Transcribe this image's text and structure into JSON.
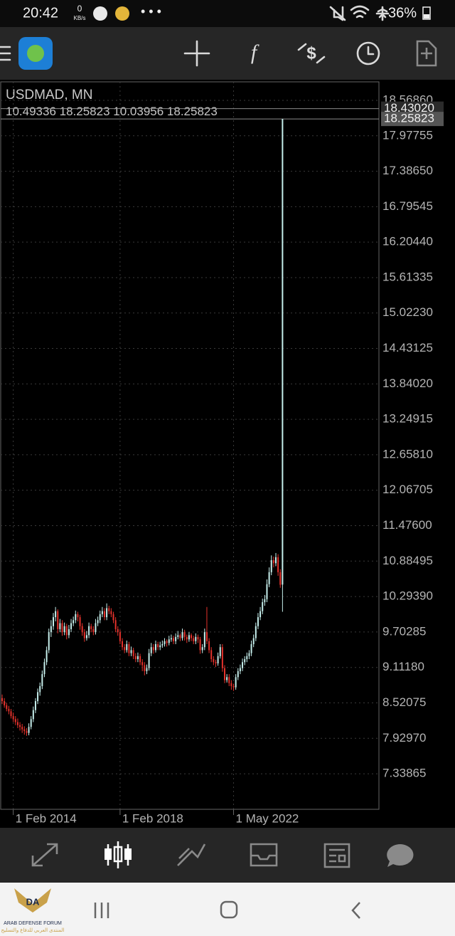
{
  "status_bar": {
    "time": "20:42",
    "speed": "0",
    "speed_unit": "KB/s",
    "battery": "36%"
  },
  "chart_data": {
    "type": "candlestick",
    "title": "USDMAD, MN",
    "up_color": "#c6efec",
    "down_color": "#e5322c",
    "grid": true,
    "ylim": [
      6.746,
      18.877
    ],
    "yticks": [
      {
        "value": 18.5686,
        "label": "18.56860"
      },
      17.97755,
      {
        "value": 17.3865,
        "label": "17.38650"
      },
      16.79545,
      {
        "value": 16.2044,
        "label": "16.20440"
      },
      15.61335,
      {
        "value": 15.0223,
        "label": "15.02230"
      },
      14.43125,
      {
        "value": 13.8402,
        "label": "13.84020"
      },
      13.24915,
      {
        "value": 12.6581,
        "label": "12.65810"
      },
      12.06705,
      {
        "value": 11.476,
        "label": "11.47600"
      },
      10.88495,
      {
        "value": 10.2939,
        "label": "10.29390"
      },
      9.70285,
      {
        "value": 9.1118,
        "label": "9.11180"
      },
      8.52075,
      {
        "value": 7.9297,
        "label": "7.92970"
      },
      7.33865
    ],
    "xticks": [
      {
        "value": 5,
        "label": "1 Feb 2014"
      },
      {
        "value": 53,
        "label": "1 Feb 2018"
      },
      {
        "value": 104,
        "label": "1 May 2022"
      }
    ],
    "price_lines": [
      {
        "value": 18.4302,
        "label": "18.43020"
      },
      18.25823
    ],
    "candles": [
      [
        8.6,
        8.66,
        8.5,
        8.55
      ],
      [
        8.55,
        8.6,
        8.44,
        8.48
      ],
      [
        8.48,
        8.52,
        8.38,
        8.42
      ],
      [
        8.42,
        8.47,
        8.33,
        8.38
      ],
      [
        8.38,
        8.42,
        8.26,
        8.3
      ],
      [
        8.3,
        8.36,
        8.2,
        8.25
      ],
      [
        8.25,
        8.3,
        8.15,
        8.2
      ],
      [
        8.2,
        8.26,
        8.1,
        8.15
      ],
      [
        8.15,
        8.2,
        8.06,
        8.12
      ],
      [
        8.12,
        8.17,
        8.02,
        8.08
      ],
      [
        8.08,
        8.13,
        7.99,
        8.05
      ],
      [
        8.05,
        8.1,
        7.97,
        8.02
      ],
      [
        8.02,
        8.18,
        7.98,
        8.12
      ],
      [
        8.12,
        8.3,
        8.08,
        8.25
      ],
      [
        8.25,
        8.46,
        8.2,
        8.4
      ],
      [
        8.4,
        8.6,
        8.35,
        8.55
      ],
      [
        8.55,
        8.76,
        8.5,
        8.7
      ],
      [
        8.7,
        8.86,
        8.64,
        8.8
      ],
      [
        8.8,
        9.06,
        8.75,
        9.0
      ],
      [
        9.0,
        9.26,
        8.95,
        9.2
      ],
      [
        9.2,
        9.46,
        9.15,
        9.4
      ],
      [
        9.4,
        9.76,
        9.35,
        9.7
      ],
      [
        9.7,
        9.9,
        9.62,
        9.8
      ],
      [
        9.8,
        10.02,
        9.74,
        9.95
      ],
      [
        9.95,
        10.12,
        9.88,
        10.05
      ],
      [
        10.05,
        10.08,
        9.68,
        9.75
      ],
      [
        9.75,
        9.92,
        9.7,
        9.85
      ],
      [
        9.85,
        9.9,
        9.64,
        9.7
      ],
      [
        9.7,
        9.86,
        9.65,
        9.8
      ],
      [
        9.8,
        9.84,
        9.58,
        9.65
      ],
      [
        9.65,
        9.82,
        9.6,
        9.75
      ],
      [
        9.75,
        9.92,
        9.7,
        9.85
      ],
      [
        9.85,
        9.96,
        9.8,
        9.9
      ],
      [
        9.9,
        10.06,
        9.85,
        10.0
      ],
      [
        10.0,
        10.04,
        9.88,
        9.95
      ],
      [
        9.95,
        9.99,
        9.74,
        9.8
      ],
      [
        9.8,
        9.85,
        9.64,
        9.7
      ],
      [
        9.7,
        9.75,
        9.54,
        9.6
      ],
      [
        9.6,
        9.72,
        9.56,
        9.65
      ],
      [
        9.65,
        9.86,
        9.6,
        9.8
      ],
      [
        9.8,
        9.84,
        9.7,
        9.75
      ],
      [
        9.75,
        9.8,
        9.65,
        9.7
      ],
      [
        9.7,
        9.92,
        9.66,
        9.85
      ],
      [
        9.85,
        9.96,
        9.8,
        9.9
      ],
      [
        9.9,
        10.06,
        9.85,
        10.0
      ],
      [
        10.0,
        10.12,
        9.95,
        10.05
      ],
      [
        10.05,
        10.1,
        9.9,
        9.95
      ],
      [
        9.95,
        10.18,
        9.9,
        10.1
      ],
      [
        10.1,
        10.14,
        10.0,
        10.05
      ],
      [
        10.05,
        10.1,
        9.95,
        10.0
      ],
      [
        10.0,
        10.04,
        9.85,
        9.9
      ],
      [
        9.9,
        9.95,
        9.7,
        9.75
      ],
      [
        9.75,
        9.8,
        9.64,
        9.7
      ],
      [
        9.7,
        9.74,
        9.5,
        9.55
      ],
      [
        9.55,
        9.6,
        9.4,
        9.45
      ],
      [
        9.45,
        9.5,
        9.35,
        9.4
      ],
      [
        9.4,
        9.56,
        9.36,
        9.5
      ],
      [
        9.5,
        9.54,
        9.3,
        9.35
      ],
      [
        9.35,
        9.46,
        9.3,
        9.4
      ],
      [
        9.4,
        9.44,
        9.25,
        9.3
      ],
      [
        9.3,
        9.35,
        9.2,
        9.25
      ],
      [
        9.25,
        9.36,
        9.2,
        9.3
      ],
      [
        9.3,
        9.34,
        9.15,
        9.2
      ],
      [
        9.2,
        9.25,
        9.05,
        9.15
      ],
      [
        9.15,
        9.2,
        8.98,
        9.05
      ],
      [
        9.05,
        9.16,
        9.0,
        9.1
      ],
      [
        9.1,
        9.42,
        9.06,
        9.35
      ],
      [
        9.35,
        9.52,
        9.3,
        9.45
      ],
      [
        9.45,
        9.5,
        9.34,
        9.4
      ],
      [
        9.4,
        9.56,
        9.36,
        9.5
      ],
      [
        9.5,
        9.54,
        9.4,
        9.45
      ],
      [
        9.45,
        9.54,
        9.4,
        9.48
      ],
      [
        9.48,
        9.56,
        9.44,
        9.5
      ],
      [
        9.5,
        9.6,
        9.46,
        9.55
      ],
      [
        9.55,
        9.58,
        9.46,
        9.52
      ],
      [
        9.52,
        9.64,
        9.48,
        9.58
      ],
      [
        9.58,
        9.66,
        9.54,
        9.6
      ],
      [
        9.6,
        9.64,
        9.5,
        9.55
      ],
      [
        9.55,
        9.68,
        9.5,
        9.62
      ],
      [
        9.62,
        9.72,
        9.58,
        9.65
      ],
      [
        9.65,
        9.68,
        9.55,
        9.6
      ],
      [
        9.6,
        9.76,
        9.56,
        9.7
      ],
      [
        9.7,
        9.74,
        9.56,
        9.62
      ],
      [
        9.62,
        9.66,
        9.52,
        9.58
      ],
      [
        9.58,
        9.7,
        9.54,
        9.65
      ],
      [
        9.65,
        9.68,
        9.55,
        9.6
      ],
      [
        9.6,
        9.64,
        9.5,
        9.55
      ],
      [
        9.55,
        9.68,
        9.5,
        9.62
      ],
      [
        9.62,
        9.66,
        9.52,
        9.58
      ],
      [
        9.58,
        9.62,
        9.34,
        9.4
      ],
      [
        9.4,
        9.5,
        9.35,
        9.45
      ],
      [
        9.45,
        9.76,
        9.4,
        9.7
      ],
      [
        9.7,
        10.12,
        9.5,
        9.55
      ],
      [
        9.55,
        9.6,
        9.35,
        9.4
      ],
      [
        9.4,
        9.45,
        9.2,
        9.25
      ],
      [
        9.25,
        9.3,
        9.15,
        9.2
      ],
      [
        9.2,
        9.24,
        9.12,
        9.18
      ],
      [
        9.18,
        9.36,
        9.14,
        9.3
      ],
      [
        9.3,
        9.5,
        9.26,
        9.45
      ],
      [
        9.45,
        9.5,
        9.04,
        9.1
      ],
      [
        9.1,
        9.15,
        8.85,
        8.9
      ],
      [
        8.9,
        9.0,
        8.86,
        8.95
      ],
      [
        8.95,
        9.0,
        8.8,
        8.85
      ],
      [
        8.85,
        8.9,
        8.74,
        8.8
      ],
      [
        8.8,
        8.84,
        8.72,
        8.78
      ],
      [
        8.78,
        9.0,
        8.74,
        8.95
      ],
      [
        8.95,
        9.1,
        8.9,
        9.05
      ],
      [
        9.05,
        9.16,
        9.0,
        9.1
      ],
      [
        9.1,
        9.26,
        9.05,
        9.2
      ],
      [
        9.2,
        9.3,
        9.15,
        9.25
      ],
      [
        9.25,
        9.36,
        9.2,
        9.3
      ],
      [
        9.3,
        9.4,
        9.25,
        9.35
      ],
      [
        9.35,
        9.56,
        9.3,
        9.5
      ],
      [
        9.5,
        9.66,
        9.45,
        9.6
      ],
      [
        9.6,
        9.86,
        9.55,
        9.8
      ],
      [
        9.8,
        10.02,
        9.75,
        9.95
      ],
      [
        9.95,
        10.12,
        9.9,
        10.05
      ],
      [
        10.05,
        10.26,
        10.0,
        10.2
      ],
      [
        10.2,
        10.32,
        10.14,
        10.25
      ],
      [
        10.25,
        10.58,
        10.2,
        10.5
      ],
      [
        10.5,
        10.78,
        10.45,
        10.7
      ],
      [
        10.7,
        10.98,
        10.65,
        10.9
      ],
      [
        10.9,
        10.96,
        10.78,
        10.85
      ],
      [
        10.85,
        11.02,
        10.8,
        10.95
      ],
      [
        10.95,
        11.0,
        10.64,
        10.7
      ],
      [
        10.7,
        10.75,
        10.44,
        10.49
      ],
      [
        10.49336,
        18.25823,
        10.03956,
        18.25823
      ]
    ]
  },
  "watermark": {
    "logo": "DA",
    "name": "ARAB DEFENSE FORUM",
    "arabic": "المنتدى العربي للدفاع والتسليح"
  }
}
